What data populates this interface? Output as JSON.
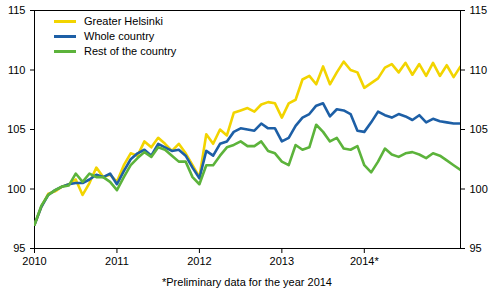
{
  "chart_data": {
    "type": "line",
    "caption": "*Preliminary data for the year 2014",
    "categories": [
      "2010",
      null,
      null,
      null,
      null,
      null,
      null,
      null,
      null,
      null,
      null,
      null,
      "2011",
      null,
      null,
      null,
      null,
      null,
      null,
      null,
      null,
      null,
      null,
      null,
      "2012",
      null,
      null,
      null,
      null,
      null,
      null,
      null,
      null,
      null,
      null,
      null,
      "2013",
      null,
      null,
      null,
      null,
      null,
      null,
      null,
      null,
      null,
      null,
      null,
      "2014*",
      null,
      null,
      null,
      null,
      null,
      null,
      null,
      null,
      null,
      null,
      null,
      null,
      null,
      null
    ],
    "series": [
      {
        "name": "Greater Helsinki",
        "color": "#f2d400",
        "values": [
          97.0,
          98.5,
          99.6,
          99.8,
          100.2,
          100.4,
          100.8,
          99.5,
          100.5,
          101.8,
          101.0,
          101.2,
          100.6,
          102.0,
          103.0,
          102.8,
          104.0,
          103.5,
          104.3,
          103.8,
          103.2,
          103.8,
          103.0,
          102.0,
          101.0,
          104.6,
          103.8,
          105.0,
          104.5,
          106.4,
          106.6,
          106.8,
          106.5,
          107.1,
          107.3,
          107.2,
          106.0,
          107.2,
          107.5,
          109.2,
          109.5,
          108.8,
          110.3,
          108.8,
          109.8,
          110.7,
          110.0,
          109.8,
          108.5,
          108.9,
          109.3,
          110.2,
          110.5,
          109.8,
          110.6,
          109.6,
          110.5,
          109.5,
          110.6,
          109.5,
          110.4,
          109.4,
          110.3
        ]
      },
      {
        "name": "Whole country",
        "color": "#1d5fa6",
        "values": [
          97.0,
          98.5,
          99.5,
          99.9,
          100.2,
          100.4,
          100.5,
          100.5,
          100.8,
          101.2,
          101.0,
          101.3,
          100.4,
          101.5,
          102.5,
          103.0,
          103.3,
          102.8,
          103.8,
          103.5,
          103.2,
          103.3,
          102.8,
          101.8,
          100.9,
          103.2,
          102.8,
          103.8,
          104.0,
          104.8,
          105.1,
          105.0,
          104.9,
          105.5,
          105.1,
          105.1,
          104.0,
          104.3,
          105.3,
          106.0,
          106.3,
          107.0,
          107.2,
          106.1,
          106.7,
          106.6,
          106.3,
          104.9,
          104.8,
          105.6,
          106.5,
          106.2,
          106.0,
          106.3,
          106.1,
          105.8,
          106.2,
          105.6,
          105.9,
          105.7,
          105.6,
          105.5,
          105.5
        ]
      },
      {
        "name": "Rest of the country",
        "color": "#5cb33b",
        "values": [
          97.0,
          98.6,
          99.5,
          99.9,
          100.2,
          100.3,
          101.3,
          100.6,
          101.3,
          101.0,
          101.0,
          100.6,
          99.9,
          101.0,
          102.0,
          102.6,
          103.1,
          102.7,
          103.5,
          103.3,
          102.8,
          102.3,
          102.3,
          101.0,
          100.4,
          102.0,
          102.0,
          102.8,
          103.5,
          103.7,
          104.0,
          103.6,
          103.6,
          104.0,
          103.2,
          103.0,
          102.3,
          102.0,
          103.7,
          103.3,
          103.5,
          105.4,
          104.8,
          104.0,
          104.3,
          103.4,
          103.3,
          103.6,
          102.0,
          101.4,
          102.3,
          103.4,
          102.9,
          102.7,
          103.0,
          103.1,
          102.9,
          102.6,
          103.0,
          102.8,
          102.4,
          102.0,
          101.6
        ]
      }
    ],
    "ylim": [
      95,
      115
    ],
    "yticks": [
      95,
      100,
      105,
      110,
      115
    ],
    "grid": false,
    "legend": "top-left"
  }
}
